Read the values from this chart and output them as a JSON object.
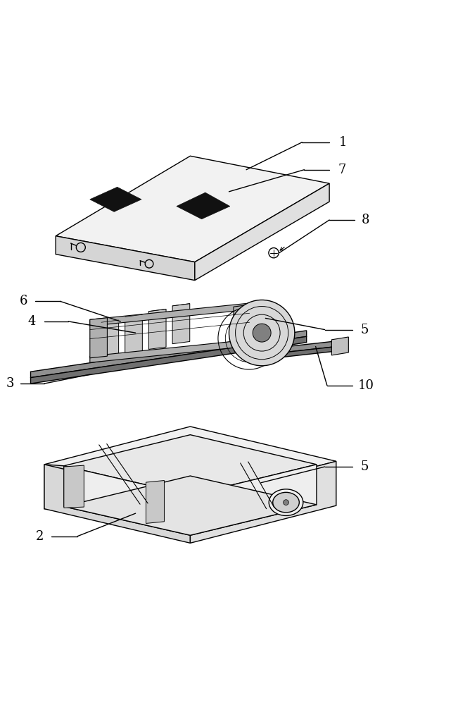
{
  "background_color": "#ffffff",
  "line_color": "#000000",
  "figure_width": 6.51,
  "figure_height": 10.0
}
